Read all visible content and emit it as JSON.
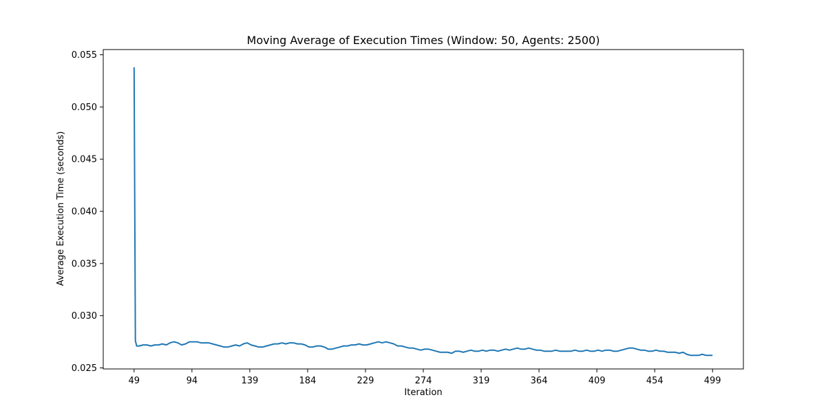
{
  "chart_data": {
    "type": "line",
    "title": "Moving Average of Execution Times (Window: 50, Agents: 2500)",
    "xlabel": "Iteration",
    "ylabel": "Average Execution Time (seconds)",
    "xlim": [
      25,
      523
    ],
    "ylim": [
      0.0249,
      0.0555
    ],
    "xticks": [
      49,
      94,
      139,
      184,
      229,
      274,
      319,
      364,
      409,
      454,
      499
    ],
    "yticks": [
      0.025,
      0.03,
      0.035,
      0.04,
      0.045,
      0.05,
      0.055
    ],
    "ytick_labels": [
      "0.025",
      "0.030",
      "0.035",
      "0.040",
      "0.045",
      "0.050",
      "0.055"
    ],
    "grid": false,
    "legend": "none",
    "series": [
      {
        "color": "#1f77b4",
        "points": [
          [
            49,
            0.0538
          ],
          [
            50,
            0.0276
          ],
          [
            51,
            0.0271
          ],
          [
            53,
            0.0271
          ],
          [
            56,
            0.0272
          ],
          [
            59,
            0.0272
          ],
          [
            62,
            0.0271
          ],
          [
            65,
            0.0272
          ],
          [
            68,
            0.0272
          ],
          [
            71,
            0.0273
          ],
          [
            74,
            0.0272
          ],
          [
            77,
            0.0274
          ],
          [
            80,
            0.0275
          ],
          [
            83,
            0.0274
          ],
          [
            86,
            0.0272
          ],
          [
            89,
            0.0273
          ],
          [
            92,
            0.0275
          ],
          [
            95,
            0.0275
          ],
          [
            98,
            0.0275
          ],
          [
            101,
            0.0274
          ],
          [
            104,
            0.0274
          ],
          [
            107,
            0.0274
          ],
          [
            110,
            0.0273
          ],
          [
            113,
            0.0272
          ],
          [
            116,
            0.0271
          ],
          [
            119,
            0.027
          ],
          [
            122,
            0.027
          ],
          [
            125,
            0.0271
          ],
          [
            128,
            0.0272
          ],
          [
            131,
            0.0271
          ],
          [
            134,
            0.0273
          ],
          [
            137,
            0.0274
          ],
          [
            140,
            0.0272
          ],
          [
            143,
            0.0271
          ],
          [
            146,
            0.027
          ],
          [
            149,
            0.027
          ],
          [
            152,
            0.0271
          ],
          [
            155,
            0.0272
          ],
          [
            158,
            0.0273
          ],
          [
            161,
            0.0273
          ],
          [
            164,
            0.0274
          ],
          [
            167,
            0.0273
          ],
          [
            170,
            0.0274
          ],
          [
            173,
            0.0274
          ],
          [
            176,
            0.0273
          ],
          [
            179,
            0.0273
          ],
          [
            182,
            0.0272
          ],
          [
            185,
            0.027
          ],
          [
            188,
            0.027
          ],
          [
            191,
            0.0271
          ],
          [
            194,
            0.0271
          ],
          [
            197,
            0.027
          ],
          [
            200,
            0.0268
          ],
          [
            203,
            0.0268
          ],
          [
            206,
            0.0269
          ],
          [
            209,
            0.027
          ],
          [
            212,
            0.0271
          ],
          [
            215,
            0.0271
          ],
          [
            218,
            0.0272
          ],
          [
            221,
            0.0272
          ],
          [
            224,
            0.0273
          ],
          [
            227,
            0.0272
          ],
          [
            230,
            0.0272
          ],
          [
            233,
            0.0273
          ],
          [
            236,
            0.0274
          ],
          [
            239,
            0.0275
          ],
          [
            242,
            0.0274
          ],
          [
            245,
            0.0275
          ],
          [
            248,
            0.0274
          ],
          [
            251,
            0.0273
          ],
          [
            254,
            0.0271
          ],
          [
            257,
            0.0271
          ],
          [
            260,
            0.027
          ],
          [
            263,
            0.0269
          ],
          [
            266,
            0.0269
          ],
          [
            269,
            0.0268
          ],
          [
            272,
            0.0267
          ],
          [
            275,
            0.0268
          ],
          [
            278,
            0.0268
          ],
          [
            281,
            0.0267
          ],
          [
            284,
            0.0266
          ],
          [
            287,
            0.0265
          ],
          [
            290,
            0.0265
          ],
          [
            293,
            0.0265
          ],
          [
            296,
            0.0264
          ],
          [
            299,
            0.0266
          ],
          [
            302,
            0.0266
          ],
          [
            305,
            0.0265
          ],
          [
            308,
            0.0266
          ],
          [
            311,
            0.0267
          ],
          [
            314,
            0.0266
          ],
          [
            317,
            0.0266
          ],
          [
            320,
            0.0267
          ],
          [
            323,
            0.0266
          ],
          [
            326,
            0.0267
          ],
          [
            329,
            0.0267
          ],
          [
            332,
            0.0266
          ],
          [
            335,
            0.0267
          ],
          [
            338,
            0.0268
          ],
          [
            341,
            0.0267
          ],
          [
            344,
            0.0268
          ],
          [
            347,
            0.0269
          ],
          [
            350,
            0.0268
          ],
          [
            353,
            0.0268
          ],
          [
            356,
            0.0269
          ],
          [
            359,
            0.0268
          ],
          [
            362,
            0.0267
          ],
          [
            365,
            0.0267
          ],
          [
            368,
            0.0266
          ],
          [
            371,
            0.0266
          ],
          [
            374,
            0.0266
          ],
          [
            377,
            0.0267
          ],
          [
            380,
            0.0266
          ],
          [
            383,
            0.0266
          ],
          [
            386,
            0.0266
          ],
          [
            389,
            0.0266
          ],
          [
            392,
            0.0267
          ],
          [
            395,
            0.0266
          ],
          [
            398,
            0.0266
          ],
          [
            401,
            0.0267
          ],
          [
            404,
            0.0266
          ],
          [
            407,
            0.0266
          ],
          [
            410,
            0.0267
          ],
          [
            413,
            0.0266
          ],
          [
            416,
            0.0267
          ],
          [
            419,
            0.0267
          ],
          [
            422,
            0.0266
          ],
          [
            425,
            0.0266
          ],
          [
            428,
            0.0267
          ],
          [
            431,
            0.0268
          ],
          [
            434,
            0.0269
          ],
          [
            437,
            0.0269
          ],
          [
            440,
            0.0268
          ],
          [
            443,
            0.0267
          ],
          [
            446,
            0.0267
          ],
          [
            449,
            0.0266
          ],
          [
            452,
            0.0266
          ],
          [
            455,
            0.0267
          ],
          [
            458,
            0.0266
          ],
          [
            461,
            0.0266
          ],
          [
            464,
            0.0265
          ],
          [
            467,
            0.0265
          ],
          [
            470,
            0.0265
          ],
          [
            473,
            0.0264
          ],
          [
            476,
            0.0265
          ],
          [
            479,
            0.0263
          ],
          [
            482,
            0.0262
          ],
          [
            485,
            0.0262
          ],
          [
            488,
            0.0262
          ],
          [
            491,
            0.0263
          ],
          [
            494,
            0.0262
          ],
          [
            497,
            0.0262
          ],
          [
            499,
            0.0262
          ]
        ]
      }
    ]
  }
}
